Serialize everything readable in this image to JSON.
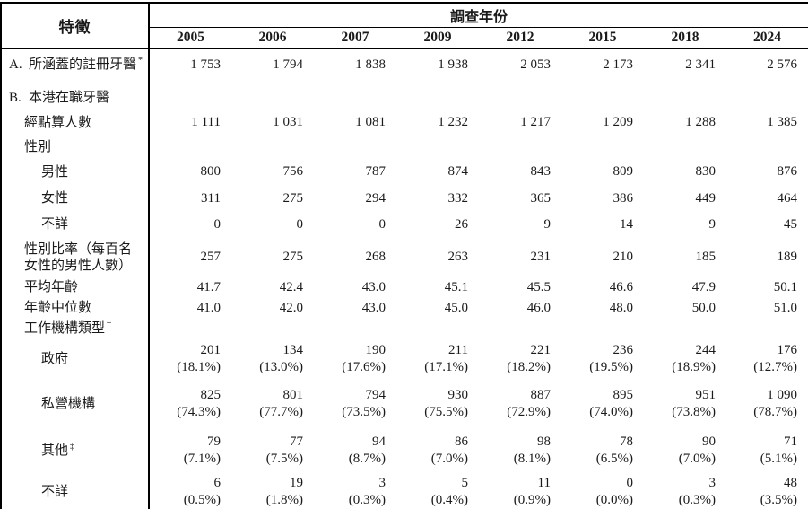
{
  "colors": {
    "background": "#ffffff",
    "text": "#1a1a1a",
    "border": "#000000"
  },
  "table": {
    "header": {
      "feature_label": "特徵",
      "survey_year_label": "調查年份",
      "years": [
        "2005",
        "2006",
        "2007",
        "2009",
        "2012",
        "2015",
        "2018",
        "2024"
      ]
    },
    "rows": [
      {
        "id": "a-registered",
        "prefix": "A.",
        "label": "所涵蓋的註冊牙醫",
        "sup": "*",
        "indent": 0,
        "values": [
          "1 753",
          "1 794",
          "1 838",
          "1 938",
          "2 053",
          "2 173",
          "2 341",
          "2 576"
        ]
      },
      {
        "id": "b-working",
        "prefix": "B.",
        "label": "本港在職牙醫",
        "indent": 0,
        "values": []
      },
      {
        "id": "counted",
        "label": "經點算人數",
        "indent": 1,
        "values": [
          "1 111",
          "1 031",
          "1 081",
          "1 232",
          "1 217",
          "1 209",
          "1 288",
          "1 385"
        ]
      },
      {
        "id": "sex",
        "label": "性別",
        "indent": 1,
        "values": []
      },
      {
        "id": "male",
        "label": "男性",
        "indent": 2,
        "values": [
          "800",
          "756",
          "787",
          "874",
          "843",
          "809",
          "830",
          "876"
        ]
      },
      {
        "id": "female",
        "label": "女性",
        "indent": 2,
        "values": [
          "311",
          "275",
          "294",
          "332",
          "365",
          "386",
          "449",
          "464"
        ]
      },
      {
        "id": "sex-unknown",
        "label": "不詳",
        "indent": 2,
        "values": [
          "0",
          "0",
          "0",
          "26",
          "9",
          "14",
          "9",
          "45"
        ]
      },
      {
        "id": "sex-ratio",
        "label": "性別比率（每百名女性的男性人數）",
        "indent": 1,
        "values": [
          "257",
          "275",
          "268",
          "263",
          "231",
          "210",
          "185",
          "189"
        ]
      },
      {
        "id": "mean-age",
        "label": "平均年齡",
        "indent": 1,
        "values": [
          "41.7",
          "42.4",
          "43.0",
          "45.1",
          "45.5",
          "46.6",
          "47.9",
          "50.1"
        ]
      },
      {
        "id": "median-age",
        "label": "年齡中位數",
        "indent": 1,
        "values": [
          "41.0",
          "42.0",
          "43.0",
          "45.0",
          "46.0",
          "48.0",
          "50.0",
          "51.0"
        ]
      },
      {
        "id": "org-type",
        "label": "工作機構類型",
        "sup": "†",
        "indent": 1,
        "values": []
      },
      {
        "id": "government",
        "label": "政府",
        "indent": 2,
        "values": [
          "201",
          "134",
          "190",
          "211",
          "221",
          "236",
          "244",
          "176"
        ],
        "pcts": [
          "(18.1%)",
          "(13.0%)",
          "(17.6%)",
          "(17.1%)",
          "(18.2%)",
          "(19.5%)",
          "(18.9%)",
          "(12.7%)"
        ]
      },
      {
        "id": "private",
        "label": "私營機構",
        "indent": 2,
        "values": [
          "825",
          "801",
          "794",
          "930",
          "887",
          "895",
          "951",
          "1 090"
        ],
        "pcts": [
          "(74.3%)",
          "(77.7%)",
          "(73.5%)",
          "(75.5%)",
          "(72.9%)",
          "(74.0%)",
          "(73.8%)",
          "(78.7%)"
        ]
      },
      {
        "id": "others",
        "label": "其他",
        "sup": "‡",
        "indent": 2,
        "values": [
          "79",
          "77",
          "94",
          "86",
          "98",
          "78",
          "90",
          "71"
        ],
        "pcts": [
          "(7.1%)",
          "(7.5%)",
          "(8.7%)",
          "(7.0%)",
          "(8.1%)",
          "(6.5%)",
          "(7.0%)",
          "(5.1%)"
        ]
      },
      {
        "id": "org-unknown",
        "label": "不詳",
        "indent": 2,
        "values": [
          "6",
          "19",
          "3",
          "5",
          "11",
          "0",
          "3",
          "48"
        ],
        "pcts": [
          "(0.5%)",
          "(1.8%)",
          "(0.3%)",
          "(0.4%)",
          "(0.9%)",
          "(0.0%)",
          "(0.3%)",
          "(3.5%)"
        ]
      }
    ]
  }
}
